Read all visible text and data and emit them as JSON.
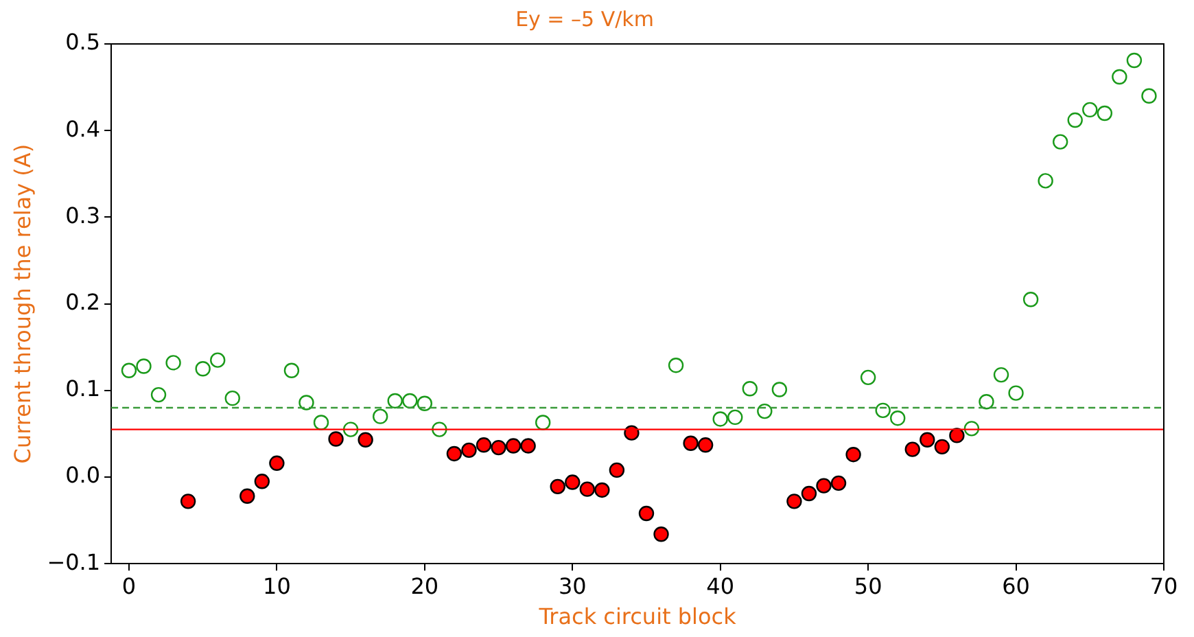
{
  "chart_data": {
    "type": "scatter",
    "title": "Ey = –5 V/km",
    "xlabel": "Track circuit block",
    "ylabel": "Current through the relay (A)",
    "xlim": [
      -1.2,
      70
    ],
    "xticks": [
      0,
      10,
      20,
      30,
      40,
      50,
      60,
      70
    ],
    "ylim": [
      -0.1,
      0.5
    ],
    "yticks": [
      {
        "value": -0.1,
        "label": "−0.1"
      },
      {
        "value": 0,
        "label": "0.0"
      },
      0.1,
      0.2,
      0.3,
      0.4,
      0.5
    ],
    "grid": false,
    "legend": false,
    "marker": "circle",
    "series": [
      {
        "color": "#1a9a1a",
        "x": [
          0,
          1,
          2,
          3,
          5,
          6,
          7,
          11,
          12,
          13,
          15,
          17,
          18,
          19,
          20,
          21,
          28,
          37,
          40,
          41,
          42,
          43,
          44,
          50,
          51,
          52,
          57,
          58,
          59,
          60,
          61,
          62,
          63,
          64,
          65,
          66,
          67,
          68,
          69
        ],
        "values": [
          0.123,
          0.128,
          0.095,
          0.132,
          0.125,
          0.135,
          0.091,
          0.123,
          0.086,
          0.063,
          0.055,
          0.07,
          0.088,
          0.088,
          0.085,
          0.055,
          0.063,
          0.129,
          0.067,
          0.069,
          0.102,
          0.076,
          0.101,
          0.115,
          0.077,
          0.068,
          0.056,
          0.087,
          0.118,
          0.097,
          0.205,
          0.342,
          0.387,
          0.412,
          0.424,
          0.42,
          0.462,
          0.481,
          0.44
        ]
      },
      {
        "color": "#ff0000",
        "x": [
          4,
          8,
          9,
          10,
          14,
          16,
          22,
          23,
          24,
          25,
          26,
          27,
          29,
          30,
          31,
          32,
          33,
          34,
          35,
          36,
          38,
          39,
          45,
          46,
          47,
          48,
          49,
          53,
          54,
          55,
          56
        ],
        "values": [
          -0.028,
          -0.022,
          -0.005,
          0.016,
          0.044,
          0.043,
          0.027,
          0.031,
          0.037,
          0.034,
          0.036,
          0.036,
          -0.011,
          -0.006,
          -0.014,
          -0.015,
          0.008,
          0.051,
          -0.042,
          -0.066,
          0.039,
          0.037,
          -0.028,
          -0.019,
          -0.01,
          -0.007,
          0.026,
          0.032,
          0.043,
          0.035,
          0.048
        ]
      }
    ],
    "ref_lines": [
      {
        "axis": "y",
        "value": 0.055,
        "color": "#ff0000",
        "line_style": "solid"
      },
      {
        "axis": "y",
        "value": 0.08,
        "color": "#3a9a3a",
        "line_style": "dashed"
      }
    ]
  }
}
